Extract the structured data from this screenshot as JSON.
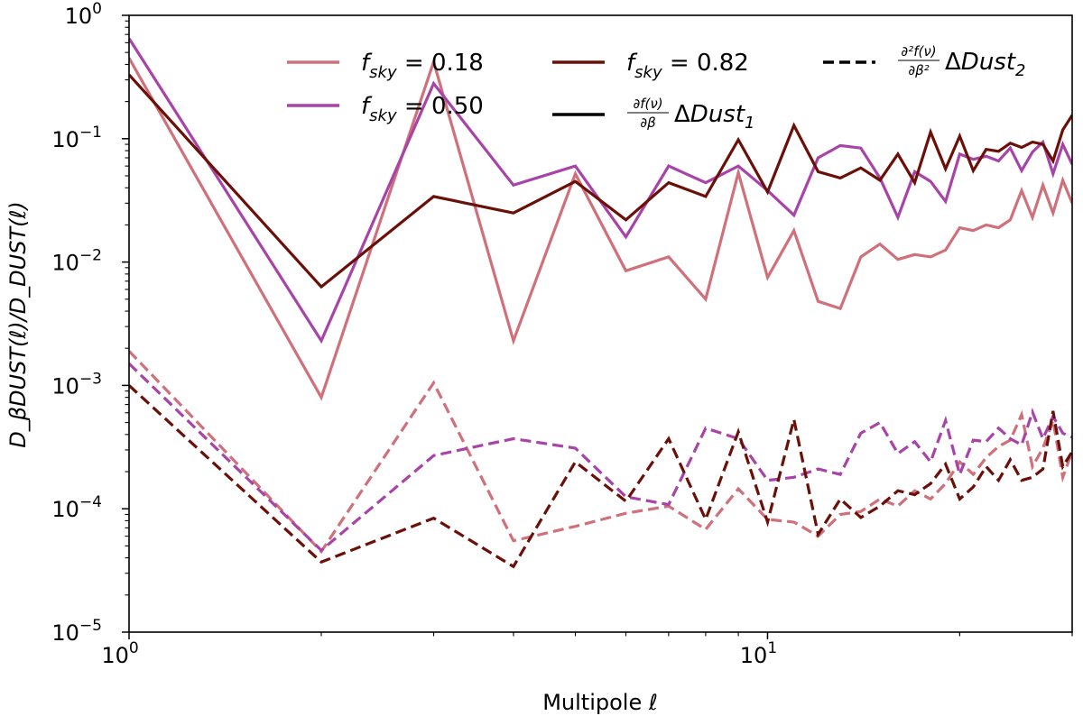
{
  "chart_data": {
    "type": "line",
    "xscale": "log",
    "yscale": "log",
    "xlim": [
      1,
      30
    ],
    "ylim": [
      1e-05,
      1
    ],
    "xlabel": "Multipole ℓ",
    "ylabel": "D_βDUST(ℓ)/D_DUST(ℓ)",
    "x_ticks": [
      {
        "value": 1,
        "base": "10",
        "exp": "0"
      },
      {
        "value": 10,
        "base": "10",
        "exp": "1"
      }
    ],
    "y_ticks": [
      {
        "value": 1,
        "base": "10",
        "exp": "0"
      },
      {
        "value": 0.1,
        "base": "10",
        "exp": "−1"
      },
      {
        "value": 0.01,
        "base": "10",
        "exp": "−2"
      },
      {
        "value": 0.001,
        "base": "10",
        "exp": "−3"
      },
      {
        "value": 0.0001,
        "base": "10",
        "exp": "−4"
      },
      {
        "value": 1e-05,
        "base": "10",
        "exp": "−5"
      }
    ],
    "x": [
      1,
      2,
      3,
      4,
      5,
      6,
      7,
      8,
      9,
      10,
      11,
      12,
      13,
      14,
      15,
      16,
      17,
      18,
      19,
      20,
      21,
      22,
      23,
      24,
      25,
      26,
      27,
      28,
      29,
      30
    ],
    "series": [
      {
        "name": "f_sky = 0.18, ∂f(ν)/∂β ΔDust1",
        "color": "#d0707a",
        "dash": false,
        "values": [
          0.45,
          0.0008,
          0.42,
          0.0023,
          0.052,
          0.0085,
          0.011,
          0.005,
          0.053,
          0.0075,
          0.018,
          0.0048,
          0.0042,
          0.011,
          0.014,
          0.0105,
          0.0115,
          0.011,
          0.0125,
          0.019,
          0.018,
          0.02,
          0.019,
          0.022,
          0.038,
          0.023,
          0.042,
          0.025,
          0.046,
          0.03
        ]
      },
      {
        "name": "f_sky = 0.50, ∂f(ν)/∂β ΔDust1",
        "color": "#a844a8",
        "dash": false,
        "values": [
          0.65,
          0.0023,
          0.28,
          0.042,
          0.06,
          0.016,
          0.06,
          0.044,
          0.06,
          0.038,
          0.024,
          0.07,
          0.088,
          0.084,
          0.048,
          0.023,
          0.054,
          0.045,
          0.031,
          0.075,
          0.068,
          0.072,
          0.066,
          0.084,
          0.055,
          0.078,
          0.094,
          0.052,
          0.09,
          0.062
        ]
      },
      {
        "name": "f_sky = 0.82, ∂f(ν)/∂β ΔDust1",
        "color": "#6b1008",
        "dash": false,
        "values": [
          0.33,
          0.0063,
          0.034,
          0.025,
          0.045,
          0.022,
          0.044,
          0.034,
          0.098,
          0.037,
          0.128,
          0.054,
          0.048,
          0.058,
          0.046,
          0.075,
          0.044,
          0.113,
          0.057,
          0.105,
          0.055,
          0.082,
          0.079,
          0.092,
          0.085,
          0.094,
          0.09,
          0.066,
          0.118,
          0.155
        ]
      },
      {
        "name": "f_sky = 0.18, ∂²f(ν)/∂β² ΔDust2",
        "color": "#d0707a",
        "dash": true,
        "values": [
          0.0019,
          4.5e-05,
          0.00105,
          5.5e-05,
          7.2e-05,
          9.2e-05,
          0.000105,
          6.8e-05,
          0.000145,
          8.2e-05,
          7.8e-05,
          6e-05,
          9e-05,
          9.5e-05,
          0.00012,
          0.000105,
          0.00014,
          0.00012,
          0.00016,
          0.00024,
          0.00019,
          0.00026,
          0.00032,
          0.00036,
          0.00058,
          0.00022,
          0.00031,
          0.00052,
          0.00018,
          0.00029
        ]
      },
      {
        "name": "f_sky = 0.50, ∂²f(ν)/∂β² ΔDust2",
        "color": "#a844a8",
        "dash": true,
        "values": [
          0.0015,
          4.6e-05,
          0.00027,
          0.00037,
          0.00031,
          0.000125,
          0.000108,
          0.00045,
          0.00037,
          0.00017,
          0.00018,
          0.00021,
          0.00019,
          0.00041,
          0.0005,
          0.00028,
          0.00035,
          0.00024,
          0.00052,
          0.00019,
          0.00036,
          0.00035,
          0.00045,
          0.00037,
          0.00033,
          0.00061,
          0.00037,
          0.00056,
          0.00041,
          0.00038
        ]
      },
      {
        "name": "f_sky = 0.82, ∂²f(ν)/∂β² ΔDust2",
        "color": "#6b1008",
        "dash": true,
        "values": [
          0.001,
          3.7e-05,
          8.4e-05,
          3.4e-05,
          0.00024,
          0.000115,
          0.00037,
          8.2e-05,
          0.00042,
          7.8e-05,
          0.00053,
          6.2e-05,
          0.00012,
          8.5e-05,
          0.000105,
          0.00014,
          0.00013,
          0.00016,
          0.00023,
          0.00012,
          0.00015,
          0.00022,
          0.00017,
          0.00025,
          0.00017,
          0.00018,
          0.00021,
          0.00062,
          0.00022,
          0.00029
        ]
      }
    ],
    "legend": {
      "placement": "top",
      "entries": [
        {
          "kind": "fsky",
          "color": "#d0707a",
          "dash": false,
          "f": "f",
          "sub": "sky",
          "rest": " = 0.18"
        },
        {
          "kind": "fsky",
          "color": "#a844a8",
          "dash": false,
          "f": "f",
          "sub": "sky",
          "rest": " = 0.50"
        },
        {
          "kind": "fsky",
          "color": "#6b1008",
          "dash": false,
          "f": "f",
          "sub": "sky",
          "rest": " = 0.82"
        },
        {
          "kind": "deriv",
          "color": "#000000",
          "dash": false,
          "num": "∂f(ν)",
          "den": "∂β",
          "text": "ΔDust",
          "sub": "1"
        },
        {
          "kind": "deriv",
          "color": "#000000",
          "dash": true,
          "num": "∂²f(ν)",
          "den": "∂β²",
          "text": "ΔDust",
          "sub": "2"
        }
      ]
    }
  }
}
